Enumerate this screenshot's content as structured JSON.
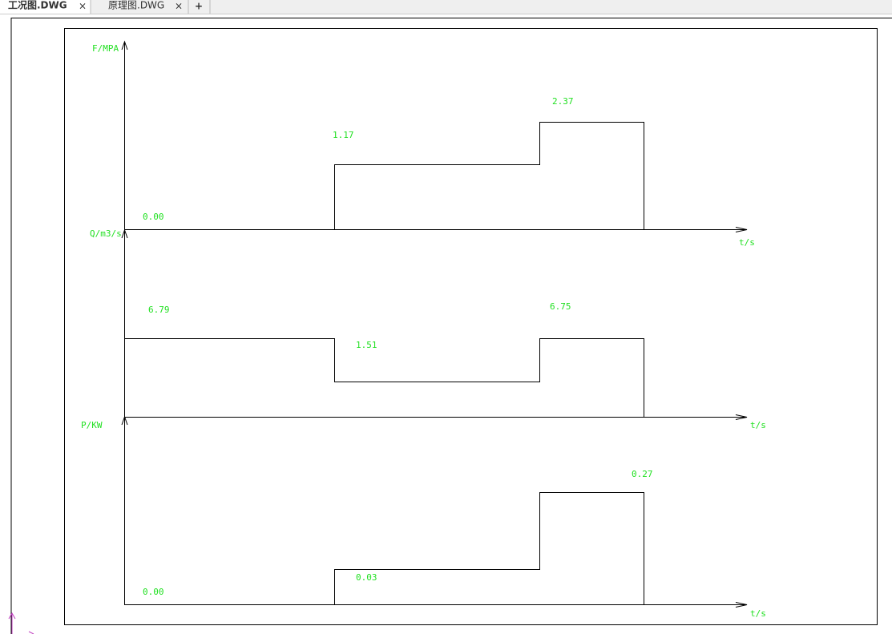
{
  "tabs": [
    {
      "label": "工况图.DWG"
    },
    {
      "label": "原理图.DWG"
    }
  ],
  "panels": [
    {
      "axis_label": "F/MPA",
      "x_label": "t/s",
      "value_labels": [
        "0.00",
        "1.17",
        "2.37"
      ]
    },
    {
      "axis_label": "Q/m3/s",
      "x_label": "t/s",
      "value_labels": [
        "6.79",
        "1.51",
        "6.75"
      ]
    },
    {
      "axis_label": "P/KW",
      "x_label": "t/s",
      "value_labels": [
        "0.00",
        "0.03",
        "0.27"
      ]
    }
  ]
}
